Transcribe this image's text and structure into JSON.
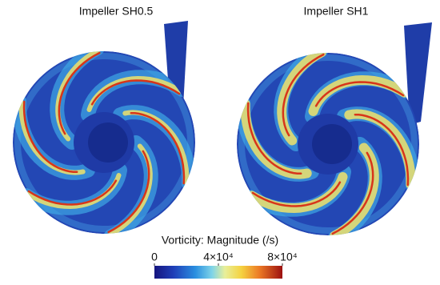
{
  "panels": [
    {
      "title": "Impeller SH0.5"
    },
    {
      "title": "Impeller SH1"
    }
  ],
  "colorbar": {
    "label": "Vorticity: Magnitude (/s)",
    "range": [
      0,
      80000
    ],
    "ticks": [
      0,
      {
        "value": 40000,
        "label": "4×10⁴"
      },
      {
        "value": 80000,
        "label": "8×10⁴"
      }
    ]
  }
}
